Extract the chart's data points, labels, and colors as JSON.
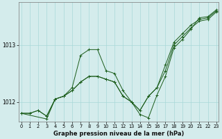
{
  "title": "Graphe pression niveau de la mer (hPa)",
  "bg_color": "#d4ecec",
  "grid_color": "#a8d8d8",
  "line_color": "#1a5c1a",
  "xlim": [
    -0.3,
    23.3
  ],
  "ylim": [
    1011.65,
    1013.75
  ],
  "yticks": [
    1012,
    1013
  ],
  "xticks": [
    0,
    1,
    2,
    3,
    4,
    5,
    6,
    7,
    8,
    9,
    10,
    11,
    12,
    13,
    14,
    15,
    16,
    17,
    18,
    19,
    20,
    21,
    22,
    23
  ],
  "series1_x": [
    0,
    1,
    2,
    3,
    4,
    5,
    6,
    7,
    8,
    9,
    10,
    11,
    12,
    13,
    14,
    15,
    16,
    17,
    18,
    19,
    20,
    21,
    22,
    23
  ],
  "series1_y": [
    1011.8,
    1011.8,
    1011.85,
    1011.75,
    1012.05,
    1012.1,
    1012.2,
    1012.35,
    1012.45,
    1012.45,
    1012.4,
    1012.35,
    1012.1,
    1012.0,
    1011.85,
    1012.1,
    1012.25,
    1012.65,
    1013.05,
    1013.2,
    1013.35,
    1013.45,
    1013.48,
    1013.6
  ],
  "series2_x": [
    0,
    1,
    2,
    3,
    4,
    5,
    6,
    7,
    8,
    9,
    10,
    11,
    12,
    13,
    14,
    15,
    16,
    17,
    18,
    19,
    20,
    21,
    22,
    23
  ],
  "series2_y": [
    1011.8,
    1011.8,
    1011.85,
    1011.75,
    1012.05,
    1012.1,
    1012.2,
    1012.35,
    1012.45,
    1012.45,
    1012.4,
    1012.35,
    1012.1,
    1012.0,
    1011.85,
    1012.1,
    1012.25,
    1012.55,
    1013.0,
    1013.15,
    1013.3,
    1013.42,
    1013.45,
    1013.58
  ],
  "series3_x": [
    0,
    3,
    4,
    5,
    6,
    7,
    8,
    9,
    10,
    11,
    12,
    13,
    14,
    15,
    16,
    17,
    18,
    19,
    20,
    21,
    22,
    23
  ],
  "series3_y": [
    1011.8,
    1011.7,
    1012.05,
    1012.1,
    1012.25,
    1012.82,
    1012.92,
    1012.92,
    1012.55,
    1012.5,
    1012.2,
    1012.0,
    1011.78,
    1011.72,
    1012.12,
    1012.45,
    1012.95,
    1013.1,
    1013.28,
    1013.48,
    1013.5,
    1013.62
  ]
}
